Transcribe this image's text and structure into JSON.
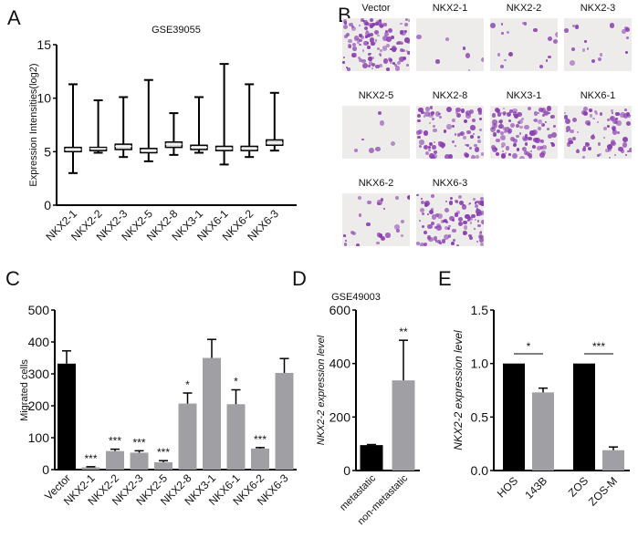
{
  "panel_labels": {
    "A": "A",
    "B": "B",
    "C": "C",
    "D": "D",
    "E": "E"
  },
  "colors": {
    "black_bar": "#000000",
    "gray_bar": "#a0a0a4",
    "stain": "#8a3fb0"
  },
  "micrographs": {
    "tiles": [
      {
        "label": "Vector",
        "density": 0.9
      },
      {
        "label": "NKX2-1",
        "density": 0.05
      },
      {
        "label": "NKX2-2",
        "density": 0.12
      },
      {
        "label": "NKX2-3",
        "density": 0.12
      },
      {
        "label": "NKX2-5",
        "density": 0.05
      },
      {
        "label": "NKX2-8",
        "density": 0.6
      },
      {
        "label": "NKX3-1",
        "density": 0.85
      },
      {
        "label": "NKX6-1",
        "density": 0.55
      },
      {
        "label": "NKX6-2",
        "density": 0.18
      },
      {
        "label": "NKX6-3",
        "density": 0.75
      }
    ]
  },
  "chart_data": [
    {
      "panel": "A",
      "type": "box",
      "title": "GSE39055",
      "xlabel": "",
      "ylabel": "Expression Intensities(log2)",
      "ylim": [
        0,
        15
      ],
      "yticks": [
        "0",
        "5",
        "10",
        "15"
      ],
      "categories": [
        "NKX2-1",
        "NKX2-2",
        "NKX2-3",
        "NKX2-5",
        "NKX2-8",
        "NKX3-1",
        "NKX6-1",
        "NKX6-2",
        "NKX6-3"
      ],
      "boxes": [
        {
          "min": 3.0,
          "q1": 5.0,
          "median": 5.2,
          "q3": 5.4,
          "max": 11.3
        },
        {
          "min": 4.9,
          "q1": 5.1,
          "median": 5.3,
          "q3": 5.4,
          "max": 9.8
        },
        {
          "min": 4.5,
          "q1": 5.2,
          "median": 5.5,
          "q3": 5.7,
          "max": 10.1
        },
        {
          "min": 4.1,
          "q1": 4.9,
          "median": 5.1,
          "q3": 5.3,
          "max": 11.7
        },
        {
          "min": 4.7,
          "q1": 5.4,
          "median": 5.7,
          "q3": 5.9,
          "max": 8.6
        },
        {
          "min": 4.9,
          "q1": 5.2,
          "median": 5.4,
          "q3": 5.6,
          "max": 10.1
        },
        {
          "min": 3.8,
          "q1": 5.1,
          "median": 5.3,
          "q3": 5.5,
          "max": 13.2
        },
        {
          "min": 4.5,
          "q1": 5.1,
          "median": 5.3,
          "q3": 5.5,
          "max": 11.3
        },
        {
          "min": 5.1,
          "q1": 5.6,
          "median": 5.8,
          "q3": 6.1,
          "max": 10.5
        }
      ]
    },
    {
      "panel": "C",
      "type": "bar",
      "title": "",
      "xlabel": "",
      "ylabel": "Migrated cells",
      "ylim": [
        0,
        500
      ],
      "yticks": [
        "0",
        "100",
        "200",
        "300",
        "400",
        "500"
      ],
      "categories": [
        "Vector",
        "NKX2-1",
        "NKX2-2",
        "NKX2-3",
        "NKX2-5",
        "NKX2-8",
        "NKX3-1",
        "NKX6-1",
        "NKX6-2",
        "NKX6-3"
      ],
      "values": [
        332,
        7,
        58,
        53,
        23,
        207,
        350,
        205,
        66,
        303
      ],
      "errors": [
        40,
        2,
        6,
        6,
        5,
        33,
        58,
        45,
        3,
        45
      ],
      "colors": [
        "black",
        "gray",
        "gray",
        "gray",
        "gray",
        "gray",
        "gray",
        "gray",
        "gray",
        "gray"
      ],
      "significance": [
        "",
        "***",
        "***",
        "***",
        "***",
        "*",
        "",
        "*",
        "***",
        ""
      ]
    },
    {
      "panel": "D",
      "type": "bar",
      "title": "GSE49003",
      "xlabel": "",
      "ylabel": "NKX2-2 expression level",
      "ylim": [
        0,
        600
      ],
      "yticks": [
        "0",
        "200",
        "400",
        "600"
      ],
      "categories": [
        "metastatic",
        "non-metastatic"
      ],
      "values": [
        95,
        337
      ],
      "errors": [
        2,
        150
      ],
      "colors": [
        "black",
        "gray"
      ],
      "significance": [
        "",
        "**"
      ]
    },
    {
      "panel": "E",
      "type": "bar",
      "title": "",
      "xlabel": "",
      "ylabel": "NKX2-2 expression level",
      "ylim": [
        0,
        1.5
      ],
      "yticks": [
        "0.0",
        "0.5",
        "1.0",
        "1.5"
      ],
      "categories": [
        "HOS",
        "143B",
        "ZOS",
        "ZOS-M"
      ],
      "values": [
        1.0,
        0.73,
        1.0,
        0.19
      ],
      "errors": [
        0,
        0.04,
        0,
        0.03
      ],
      "colors": [
        "black",
        "gray",
        "black",
        "gray"
      ],
      "comparisons": [
        {
          "pair": [
            "HOS",
            "143B"
          ],
          "label": "*"
        },
        {
          "pair": [
            "ZOS",
            "ZOS-M"
          ],
          "label": "***"
        }
      ]
    }
  ]
}
